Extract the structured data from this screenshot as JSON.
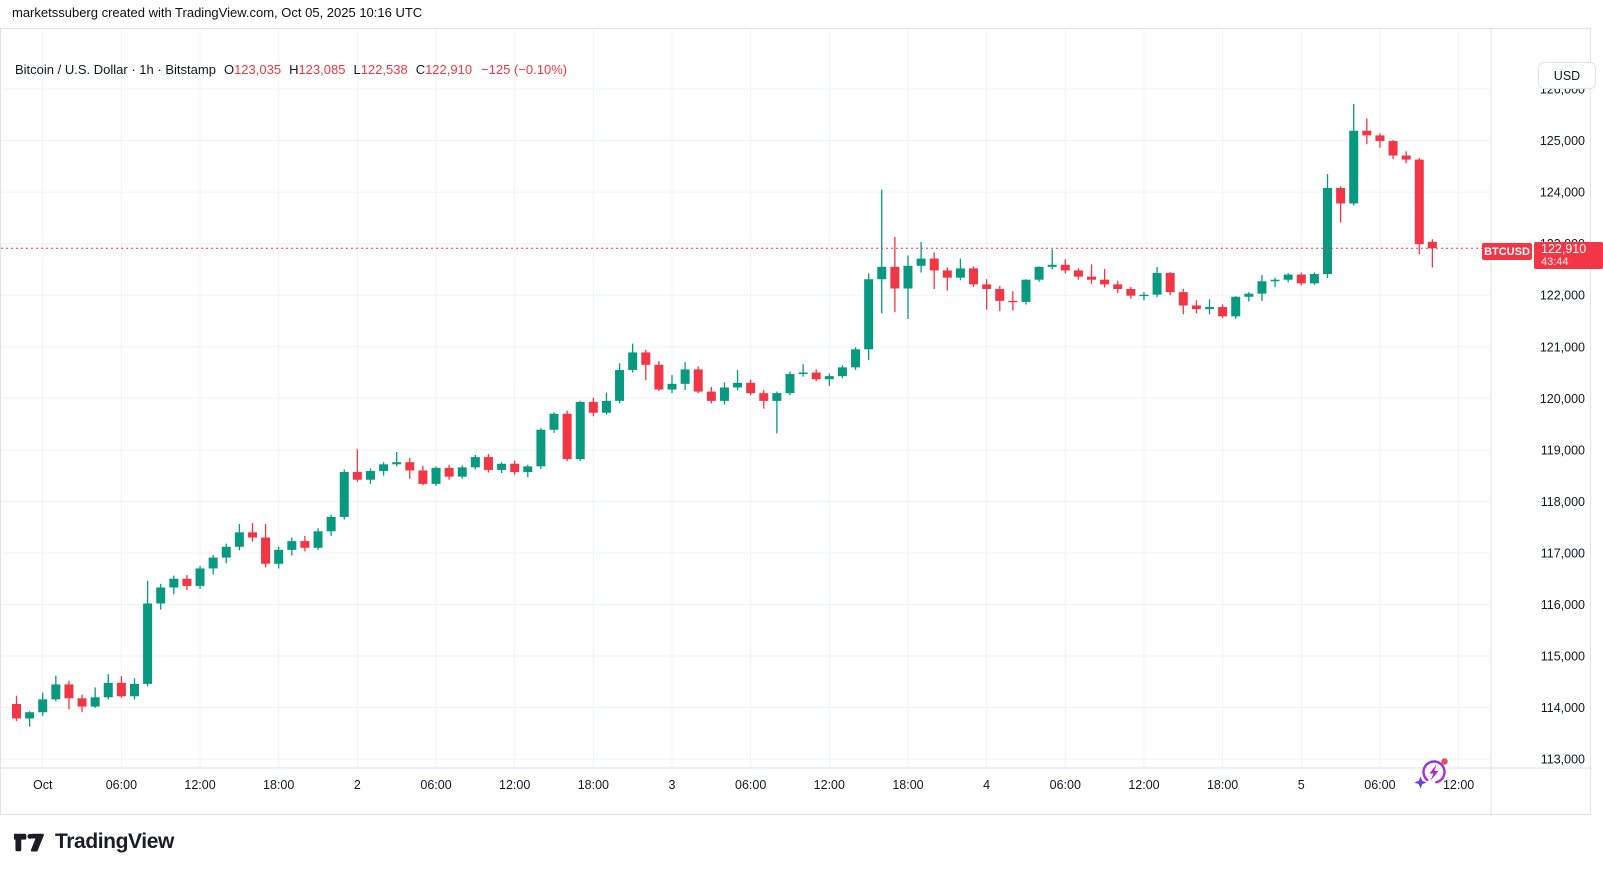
{
  "attribution": "marketssuberg created with TradingView.com, Oct 05, 2025 10:16 UTC",
  "legend": {
    "symbol_title": "Bitcoin / U.S. Dollar",
    "separator": "·",
    "interval": "1h",
    "exchange": "Bitstamp",
    "open_label": "O",
    "open_value": "123,035",
    "high_label": "H",
    "high_value": "123,085",
    "low_label": "L",
    "low_value": "122,538",
    "close_label": "C",
    "close_value": "122,910",
    "change_text": "−125 (−0.10%)"
  },
  "toolbar": {
    "currency_label": "USD"
  },
  "last_price_marker": {
    "ticker": "BTCUSD",
    "price": "122,910",
    "countdown": "43:44"
  },
  "footer": {
    "logo_text": "TradingView"
  },
  "colors": {
    "up": "#089981",
    "down": "#f23645",
    "accent_red": "#f23645",
    "grid": "#f0f3fa",
    "axis_text": "#131722",
    "border": "#e0e3eb",
    "background": "#ffffff"
  },
  "chart_data": {
    "type": "candlestick",
    "title": "Bitcoin / U.S. Dollar",
    "symbol": "BTCUSD",
    "interval": "1h",
    "exchange": "Bitstamp",
    "current_price": 122910,
    "y_axis": {
      "min": 113000,
      "max": 126000,
      "step": 1000,
      "labels": [
        "126,000",
        "125,000",
        "124,000",
        "123,000",
        "122,000",
        "121,000",
        "120,000",
        "119,000",
        "118,000",
        "117,000",
        "116,000",
        "115,000",
        "114,000",
        "113,000"
      ]
    },
    "x_ticks": [
      {
        "label": "Oct",
        "candle_index": 2
      },
      {
        "label": "06:00",
        "candle_index": 8
      },
      {
        "label": "12:00",
        "candle_index": 14
      },
      {
        "label": "18:00",
        "candle_index": 20
      },
      {
        "label": "2",
        "candle_index": 26
      },
      {
        "label": "06:00",
        "candle_index": 32
      },
      {
        "label": "12:00",
        "candle_index": 38
      },
      {
        "label": "18:00",
        "candle_index": 44
      },
      {
        "label": "3",
        "candle_index": 50
      },
      {
        "label": "06:00",
        "candle_index": 56
      },
      {
        "label": "12:00",
        "candle_index": 62
      },
      {
        "label": "18:00",
        "candle_index": 68
      },
      {
        "label": "4",
        "candle_index": 74
      },
      {
        "label": "06:00",
        "candle_index": 80
      },
      {
        "label": "12:00",
        "candle_index": 86
      },
      {
        "label": "18:00",
        "candle_index": 92
      },
      {
        "label": "5",
        "candle_index": 98
      },
      {
        "label": "06:00",
        "candle_index": 104
      },
      {
        "label": "12:00",
        "candle_index": 110
      }
    ],
    "candles": [
      [
        114070,
        114230,
        113740,
        113790
      ],
      [
        113790,
        113930,
        113630,
        113910
      ],
      [
        113910,
        114290,
        113840,
        114160
      ],
      [
        114160,
        114620,
        114120,
        114450
      ],
      [
        114450,
        114520,
        113970,
        114180
      ],
      [
        114180,
        114250,
        113910,
        114020
      ],
      [
        114020,
        114390,
        113990,
        114200
      ],
      [
        114200,
        114650,
        114160,
        114480
      ],
      [
        114480,
        114610,
        114190,
        114220
      ],
      [
        114220,
        114570,
        114160,
        114460
      ],
      [
        114460,
        116460,
        114410,
        116020
      ],
      [
        116020,
        116400,
        115900,
        116330
      ],
      [
        116330,
        116560,
        116200,
        116500
      ],
      [
        116500,
        116570,
        116280,
        116360
      ],
      [
        116360,
        116750,
        116300,
        116700
      ],
      [
        116700,
        116960,
        116580,
        116910
      ],
      [
        116910,
        117180,
        116800,
        117120
      ],
      [
        117120,
        117560,
        117050,
        117400
      ],
      [
        117400,
        117580,
        117220,
        117300
      ],
      [
        117300,
        117560,
        116720,
        116790
      ],
      [
        116790,
        117120,
        116700,
        117060
      ],
      [
        117060,
        117300,
        116950,
        117230
      ],
      [
        117230,
        117330,
        117030,
        117100
      ],
      [
        117100,
        117480,
        117060,
        117420
      ],
      [
        117420,
        117740,
        117330,
        117700
      ],
      [
        117700,
        118620,
        117650,
        118570
      ],
      [
        118570,
        119010,
        118380,
        118420
      ],
      [
        118420,
        118640,
        118340,
        118590
      ],
      [
        118590,
        118760,
        118500,
        118720
      ],
      [
        118720,
        118960,
        118680,
        118760
      ],
      [
        118760,
        118840,
        118440,
        118600
      ],
      [
        118600,
        118690,
        118310,
        118340
      ],
      [
        118340,
        118680,
        118300,
        118650
      ],
      [
        118650,
        118710,
        118420,
        118480
      ],
      [
        118480,
        118700,
        118440,
        118660
      ],
      [
        118660,
        118900,
        118620,
        118860
      ],
      [
        118860,
        118920,
        118560,
        118610
      ],
      [
        118610,
        118760,
        118550,
        118730
      ],
      [
        118730,
        118790,
        118520,
        118570
      ],
      [
        118570,
        118710,
        118470,
        118680
      ],
      [
        118680,
        119420,
        118630,
        119390
      ],
      [
        119390,
        119730,
        119330,
        119700
      ],
      [
        119700,
        119760,
        118780,
        118820
      ],
      [
        118820,
        119950,
        118790,
        119930
      ],
      [
        119930,
        120010,
        119650,
        119720
      ],
      [
        119720,
        120110,
        119680,
        119950
      ],
      [
        119950,
        120680,
        119900,
        120550
      ],
      [
        120550,
        121060,
        120500,
        120890
      ],
      [
        120890,
        120940,
        120350,
        120650
      ],
      [
        120650,
        120720,
        120140,
        120170
      ],
      [
        120170,
        120450,
        120100,
        120280
      ],
      [
        120280,
        120700,
        120160,
        120560
      ],
      [
        120560,
        120620,
        120100,
        120130
      ],
      [
        120130,
        120220,
        119900,
        119950
      ],
      [
        119950,
        120310,
        119880,
        120210
      ],
      [
        120210,
        120550,
        120150,
        120300
      ],
      [
        120300,
        120360,
        120060,
        120100
      ],
      [
        120100,
        120160,
        119800,
        119950
      ],
      [
        119950,
        120130,
        119320,
        120100
      ],
      [
        120100,
        120520,
        120060,
        120470
      ],
      [
        120470,
        120660,
        120420,
        120500
      ],
      [
        120500,
        120560,
        120330,
        120370
      ],
      [
        120370,
        120480,
        120240,
        120430
      ],
      [
        120430,
        120640,
        120390,
        120600
      ],
      [
        120600,
        120990,
        120550,
        120950
      ],
      [
        120950,
        122420,
        120740,
        122310
      ],
      [
        122310,
        124050,
        121650,
        122550
      ],
      [
        122550,
        123130,
        121670,
        122130
      ],
      [
        122130,
        122770,
        121540,
        122570
      ],
      [
        122570,
        123030,
        122440,
        122710
      ],
      [
        122710,
        122830,
        122120,
        122480
      ],
      [
        122480,
        122540,
        122090,
        122340
      ],
      [
        122340,
        122710,
        122290,
        122520
      ],
      [
        122520,
        122560,
        122160,
        122210
      ],
      [
        122210,
        122310,
        121720,
        122120
      ],
      [
        122120,
        122180,
        121690,
        121890
      ],
      [
        121890,
        122080,
        121700,
        121870
      ],
      [
        121870,
        122310,
        121820,
        122300
      ],
      [
        122300,
        122560,
        122260,
        122550
      ],
      [
        122550,
        122890,
        122500,
        122590
      ],
      [
        122590,
        122700,
        122420,
        122480
      ],
      [
        122480,
        122520,
        122300,
        122360
      ],
      [
        122360,
        122600,
        122220,
        122300
      ],
      [
        122300,
        122510,
        122150,
        122210
      ],
      [
        122210,
        122280,
        122040,
        122120
      ],
      [
        122120,
        122160,
        121930,
        121990
      ],
      [
        121990,
        122060,
        121900,
        122010
      ],
      [
        122010,
        122550,
        121960,
        122430
      ],
      [
        122430,
        122450,
        122000,
        122060
      ],
      [
        122060,
        122120,
        121630,
        121800
      ],
      [
        121800,
        121900,
        121650,
        121730
      ],
      [
        121730,
        121920,
        121630,
        121770
      ],
      [
        121770,
        121820,
        121560,
        121590
      ],
      [
        121590,
        121980,
        121540,
        121970
      ],
      [
        121970,
        122060,
        121880,
        122030
      ],
      [
        122030,
        122390,
        121890,
        122270
      ],
      [
        122270,
        122340,
        122160,
        122300
      ],
      [
        122300,
        122430,
        122250,
        122400
      ],
      [
        122400,
        122440,
        122190,
        122230
      ],
      [
        122230,
        122440,
        122200,
        122410
      ],
      [
        122410,
        124350,
        122330,
        124080
      ],
      [
        124080,
        124110,
        123410,
        123780
      ],
      [
        123780,
        125710,
        123740,
        125190
      ],
      [
        125190,
        125430,
        124930,
        125100
      ],
      [
        125100,
        125140,
        124860,
        124990
      ],
      [
        124990,
        125010,
        124640,
        124710
      ],
      [
        124710,
        124790,
        124560,
        124630
      ],
      [
        124630,
        124660,
        122790,
        122990
      ],
      [
        123035,
        123085,
        122538,
        122910
      ]
    ]
  }
}
